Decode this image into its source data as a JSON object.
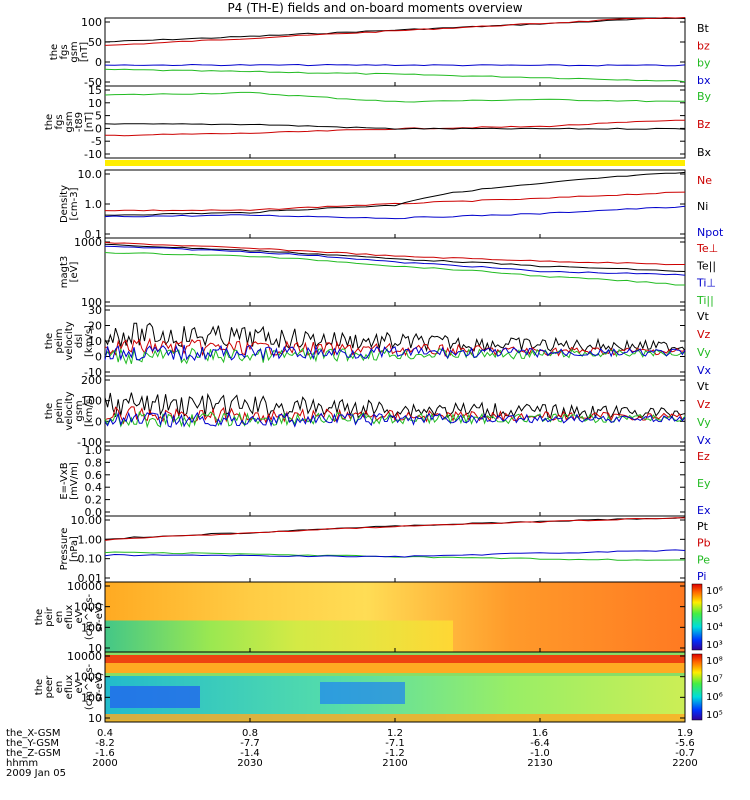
{
  "title": "P4 (TH-E) fields and on-board moments overview",
  "panels": [
    {
      "id": "fgs-gsm",
      "ylabel": [
        "the",
        "fgs",
        "gsm",
        "[nT]"
      ],
      "yticks": [
        "100",
        "50",
        "0",
        "-50"
      ],
      "legend": [
        {
          "label": "Bt",
          "color": "#000000"
        },
        {
          "label": "bz",
          "color": "#cc0000"
        },
        {
          "label": "by",
          "color": "#22bb22"
        },
        {
          "label": "bx",
          "color": "#0000cc"
        }
      ]
    },
    {
      "id": "fgs-gsm-t89",
      "ylabel": [
        "the",
        "fgs",
        "gsm",
        "-t89",
        "[nT]"
      ],
      "yticks": [
        "15",
        "10",
        "5",
        "0",
        "-5",
        "-10"
      ],
      "legend": [
        {
          "label": "By",
          "color": "#22bb22"
        },
        {
          "label": "Bz",
          "color": "#cc0000"
        },
        {
          "label": "Bx",
          "color": "#000000"
        }
      ]
    },
    {
      "id": "density",
      "ylabel": [
        "Density",
        "[cm-3]"
      ],
      "yticks": [
        "10.0",
        "1.0",
        "0.1"
      ],
      "legend": [
        {
          "label": "Ne",
          "color": "#cc0000"
        },
        {
          "label": "Ni",
          "color": "#000000"
        },
        {
          "label": "Npot",
          "color": "#0000cc"
        }
      ]
    },
    {
      "id": "temperature",
      "ylabel": [
        "magt3",
        "[eV]"
      ],
      "yticks": [
        "1000",
        "100"
      ],
      "legend": [
        {
          "label": "Te⊥",
          "color": "#cc0000"
        },
        {
          "label": "Te||",
          "color": "#000000"
        },
        {
          "label": "Ti⊥",
          "color": "#0000cc"
        },
        {
          "label": "Ti||",
          "color": "#22bb22"
        }
      ]
    },
    {
      "id": "peim-dsl",
      "ylabel": [
        "the",
        "peim",
        "velocity",
        "dsl",
        "[km/s]"
      ],
      "yticks": [
        "30",
        "20",
        "10",
        "0",
        "-10"
      ],
      "legend": [
        {
          "label": "Vt",
          "color": "#000000"
        },
        {
          "label": "Vz",
          "color": "#cc0000"
        },
        {
          "label": "Vy",
          "color": "#22bb22"
        },
        {
          "label": "Vx",
          "color": "#0000cc"
        }
      ]
    },
    {
      "id": "peim-gsm",
      "ylabel": [
        "the",
        "peim",
        "velocity",
        "gsm",
        "[km/s]"
      ],
      "yticks": [
        "200",
        "100",
        "0",
        "-100"
      ],
      "legend": [
        {
          "label": "Vt",
          "color": "#000000"
        },
        {
          "label": "Vz",
          "color": "#cc0000"
        },
        {
          "label": "Vy",
          "color": "#22bb22"
        },
        {
          "label": "Vx",
          "color": "#0000cc"
        }
      ]
    },
    {
      "id": "e-vxb",
      "ylabel": [
        "E=-VxB",
        "[mV/m]"
      ],
      "yticks": [
        "1.0",
        "0.8",
        "0.6",
        "0.4",
        "0.2",
        "0.0"
      ],
      "legend": [
        {
          "label": "Ez",
          "color": "#cc0000"
        },
        {
          "label": "Ey",
          "color": "#22bb22"
        },
        {
          "label": "Ex",
          "color": "#0000cc"
        }
      ]
    },
    {
      "id": "pressure",
      "ylabel": [
        "Pressure",
        "[nPa]"
      ],
      "yticks": [
        "10.00",
        "1.00",
        "0.10",
        "0.01"
      ],
      "legend": [
        {
          "label": "Pt",
          "color": "#000000"
        },
        {
          "label": "Pb",
          "color": "#cc0000"
        },
        {
          "label": "Pe",
          "color": "#22bb22"
        },
        {
          "label": "Pi",
          "color": "#0000cc"
        }
      ]
    },
    {
      "id": "peir-eflux",
      "ylabel": [
        "the",
        "peir",
        "en",
        "eflux",
        "eV",
        "(cm^2-s-",
        "sr-eV)"
      ],
      "yticks": [
        "10000",
        "1000",
        "100",
        "10"
      ],
      "colorbar": [
        "10⁶",
        "10⁵",
        "10⁴",
        "10³"
      ]
    },
    {
      "id": "peer-eflux",
      "ylabel": [
        "the",
        "peer",
        "en",
        "eflux",
        "eV",
        "(cm^2-s-",
        "sr-eV)"
      ],
      "yticks": [
        "10000",
        "1000",
        "100",
        "10"
      ],
      "colorbar": [
        "10⁸",
        "10⁷",
        "10⁶",
        "10⁵"
      ]
    }
  ],
  "xaxis": {
    "rows": [
      {
        "label": "the_X-GSM",
        "values": [
          "0.4",
          "0.8",
          "1.2",
          "1.6",
          "1.9"
        ]
      },
      {
        "label": "the_Y-GSM",
        "values": [
          "-8.2",
          "-7.7",
          "-7.1",
          "-6.4",
          "-5.6"
        ]
      },
      {
        "label": "the_Z-GSM",
        "values": [
          "-1.6",
          "-1.4",
          "-1.2",
          "-1.0",
          "-0.7"
        ]
      },
      {
        "label": "hhmm",
        "values": [
          "2000",
          "2030",
          "2100",
          "2130",
          "2200"
        ]
      }
    ],
    "date": "2009 Jan 05"
  },
  "chart_data": {
    "type": "line",
    "title": "P4 (TH-E) fields and on-board moments overview",
    "x": [
      "2000",
      "2030",
      "2100",
      "2130",
      "2200"
    ],
    "panels": [
      {
        "name": "fgs gsm [nT]",
        "ylim": [
          -75,
          110
        ],
        "series": [
          {
            "name": "Bt",
            "color": "#000000",
            "values": [
              45,
              60,
              77,
              94,
              112
            ]
          },
          {
            "name": "bz",
            "color": "#cc0000",
            "values": [
              35,
              55,
              75,
              95,
              115
            ]
          },
          {
            "name": "by",
            "color": "#22bb22",
            "values": [
              -30,
              -36,
              -43,
              -52,
              -62
            ]
          },
          {
            "name": "bx",
            "color": "#0000cc",
            "values": [
              -18,
              -18,
              -18,
              -19,
              -19
            ]
          }
        ]
      },
      {
        "name": "fgs gsm-t89 [nT]",
        "ylim": [
          -15,
          17
        ],
        "series": [
          {
            "name": "By",
            "color": "#22bb22",
            "values": [
              13,
              14,
              10,
              11,
              10
            ]
          },
          {
            "name": "Bz",
            "color": "#cc0000",
            "values": [
              -5,
              -4,
              -2,
              -1,
              2
            ]
          },
          {
            "name": "Bx",
            "color": "#000000",
            "values": [
              0,
              0,
              -2,
              -2,
              -2
            ]
          }
        ]
      },
      {
        "name": "Density [cm-3]",
        "log": true,
        "ylim": [
          0.1,
          12
        ],
        "series": [
          {
            "name": "Ne",
            "color": "#cc0000",
            "values": [
              0.7,
              0.7,
              1.1,
              1.6,
              2.5
            ]
          },
          {
            "name": "Ni",
            "color": "#000000",
            "values": [
              0.5,
              0.6,
              1.0,
              4.5,
              10
            ]
          },
          {
            "name": "Npot",
            "color": "#0000cc",
            "values": [
              0.45,
              0.5,
              0.4,
              0.55,
              0.9
            ]
          }
        ]
      },
      {
        "name": "magt3 [eV]",
        "log": true,
        "ylim": [
          100,
          6000
        ],
        "series": [
          {
            "name": "Te⊥",
            "color": "#cc0000",
            "values": [
              4500,
              3200,
              2000,
              1500,
              1200
            ]
          },
          {
            "name": "Te||",
            "color": "#000000",
            "values": [
              4000,
              2800,
              1700,
              1100,
              800
            ]
          },
          {
            "name": "Ti⊥",
            "color": "#0000cc",
            "values": [
              3600,
              2600,
              1400,
              800,
              650
            ]
          },
          {
            "name": "Ti||",
            "color": "#22bb22",
            "values": [
              2500,
              2000,
              1100,
              600,
              350
            ]
          }
        ]
      },
      {
        "name": "peim velocity dsl [km/s]",
        "ylim": [
          -15,
          30
        ],
        "series": [
          {
            "name": "Vt",
            "color": "#000000",
            "values": [
              12,
              10,
              7,
              5,
              4
            ]
          },
          {
            "name": "Vz",
            "color": "#cc0000",
            "values": [
              4,
              3,
              2,
              1,
              1
            ]
          },
          {
            "name": "Vy",
            "color": "#22bb22",
            "values": [
              -2,
              -2,
              -1,
              -1,
              0
            ]
          },
          {
            "name": "Vx",
            "color": "#0000cc",
            "values": [
              0,
              0,
              0,
              0,
              0
            ]
          }
        ]
      },
      {
        "name": "peim velocity gsm [km/s]",
        "ylim": [
          -150,
          220
        ],
        "series": [
          {
            "name": "Vt",
            "color": "#000000",
            "values": [
              70,
              60,
              45,
              35,
              25
            ]
          },
          {
            "name": "Vz",
            "color": "#cc0000",
            "values": [
              15,
              12,
              10,
              8,
              5
            ]
          },
          {
            "name": "Vy",
            "color": "#22bb22",
            "values": [
              -10,
              -8,
              -5,
              -5,
              -3
            ]
          },
          {
            "name": "Vx",
            "color": "#0000cc",
            "values": [
              -15,
              -12,
              -8,
              -6,
              -5
            ]
          }
        ]
      },
      {
        "name": "E=-VxB [mV/m]",
        "ylim": [
          0,
          1
        ],
        "series": []
      },
      {
        "name": "Pressure [nPa]",
        "log": true,
        "ylim": [
          0.01,
          12
        ],
        "series": [
          {
            "name": "Pt",
            "color": "#000000",
            "values": [
              1.0,
              2.0,
              4.0,
              6.5,
              10.0
            ]
          },
          {
            "name": "Pb",
            "color": "#cc0000",
            "values": [
              0.9,
              1.9,
              3.8,
              6.3,
              9.8
            ]
          },
          {
            "name": "Pe",
            "color": "#22bb22",
            "values": [
              0.25,
              0.2,
              0.15,
              0.12,
              0.1
            ]
          },
          {
            "name": "Pi",
            "color": "#0000cc",
            "values": [
              0.18,
              0.17,
              0.15,
              0.22,
              0.3
            ]
          }
        ]
      }
    ]
  }
}
